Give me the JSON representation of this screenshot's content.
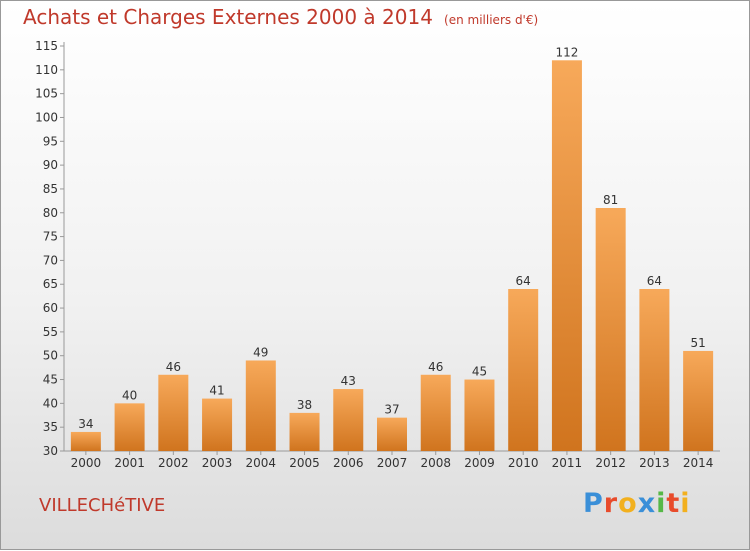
{
  "header": {
    "title": "Achats et Charges Externes 2000 à 2014",
    "unit": "(en milliers d'€)"
  },
  "footer": {
    "place": "VILLECHéTIVE",
    "brand": "Proxiti",
    "brand_colors": [
      "#3a8fd8",
      "#e84b2b",
      "#f2b01e",
      "#3a8fd8",
      "#56b847",
      "#e84b2b",
      "#f2b01e"
    ]
  },
  "colors": {
    "bar_light": "#f7a95a",
    "bar_dark": "#d0741e",
    "text": "#c0392b"
  },
  "chart_data": {
    "type": "bar",
    "title": "Achats et Charges Externes 2000 à 2014",
    "categories": [
      "2000",
      "2001",
      "2002",
      "2003",
      "2004",
      "2005",
      "2006",
      "2007",
      "2008",
      "2009",
      "2010",
      "2011",
      "2012",
      "2013",
      "2014"
    ],
    "values": [
      34,
      40,
      46,
      41,
      49,
      38,
      43,
      37,
      46,
      45,
      64,
      112,
      81,
      64,
      51
    ],
    "yticks": [
      30,
      35,
      40,
      45,
      50,
      55,
      60,
      65,
      70,
      75,
      80,
      85,
      90,
      95,
      100,
      105,
      110,
      115
    ],
    "ylim": [
      30,
      115
    ],
    "grid": false,
    "data_labels": true
  }
}
